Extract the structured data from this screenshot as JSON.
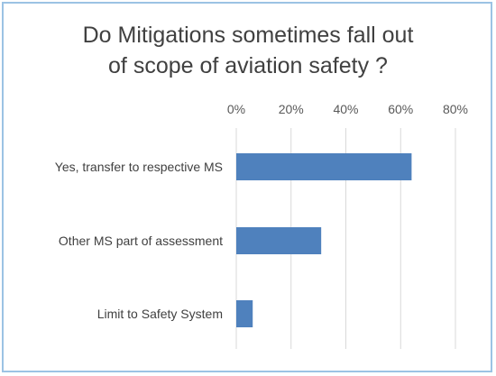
{
  "chart_data": {
    "type": "bar",
    "orientation": "horizontal",
    "title_lines": [
      "Do Mitigations sometimes fall out",
      "of scope of aviation safety ?"
    ],
    "categories": [
      "Yes, transfer to respective MS",
      "Other MS part of assessment",
      "Limit to Safety System"
    ],
    "values": [
      64,
      31,
      6
    ],
    "value_unit": "%",
    "xlim": [
      0,
      80
    ],
    "x_ticks": [
      "0%",
      "20%",
      "40%",
      "60%",
      "80%"
    ],
    "x_axis_position": "top",
    "grid": true,
    "legend": "none",
    "bar_color": "#4f81bd",
    "grid_color": "#d9d9d9"
  }
}
